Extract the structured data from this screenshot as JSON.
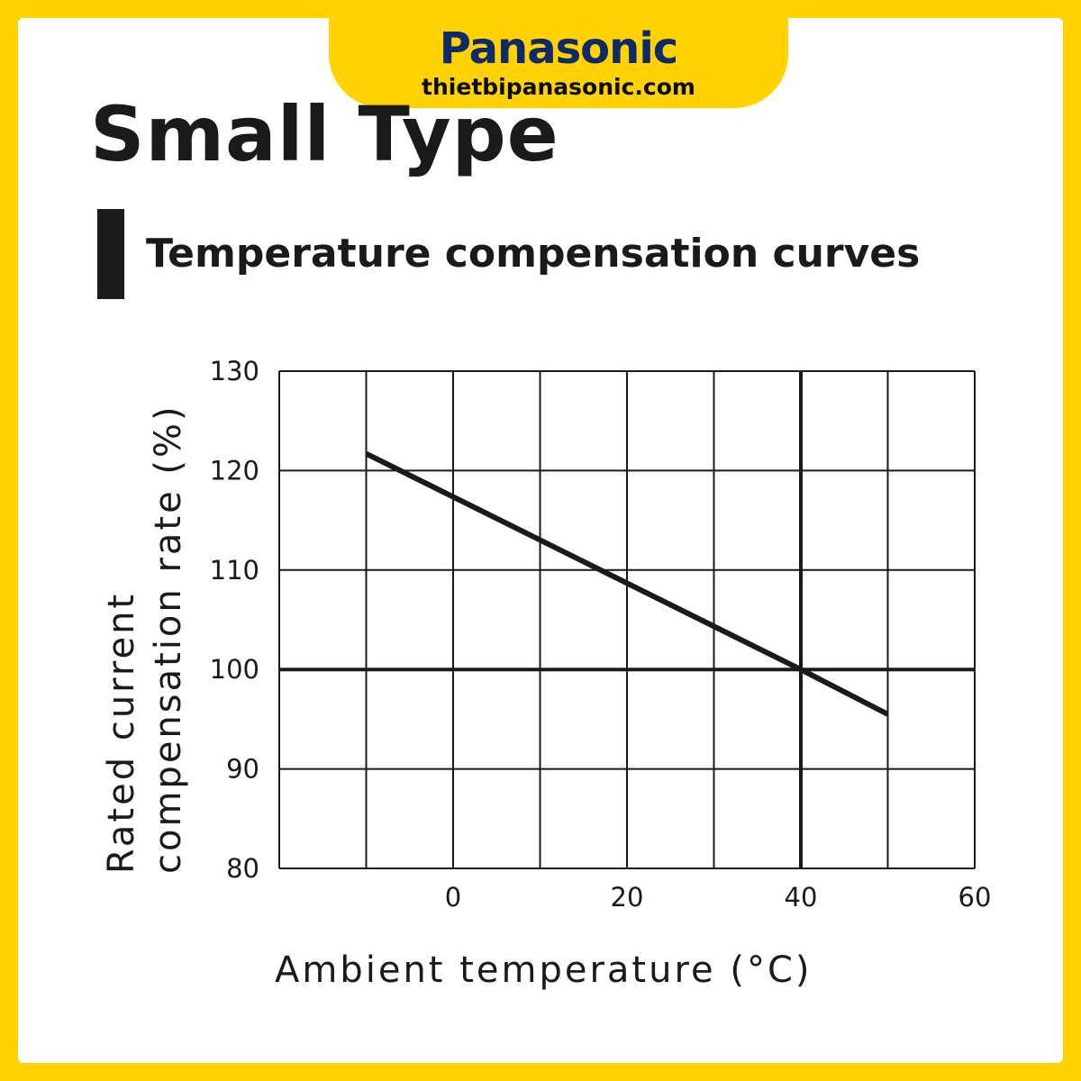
{
  "brand": {
    "name": "Panasonic",
    "website": "thietbipanasonic.com"
  },
  "page": {
    "title": "Small Type",
    "subtitle": "Temperature compensation curves"
  },
  "colors": {
    "accent": "#FFD200",
    "brand_blue": "#0f2a6b",
    "ink": "#1a1a1a"
  },
  "chart_data": {
    "type": "line",
    "title": "",
    "xlabel": "Ambient temperature (°C)",
    "ylabel": "Rated current compensation rate (%)",
    "xlim": [
      -20,
      60
    ],
    "ylim": [
      80,
      130
    ],
    "x_ticks": [
      0,
      20,
      40,
      60
    ],
    "y_ticks": [
      80,
      90,
      100,
      110,
      120,
      130
    ],
    "x_grid_step": 10,
    "y_grid_step": 10,
    "grid": true,
    "reference_lines": {
      "x": 40,
      "y": 100
    },
    "series": [
      {
        "x": [
          -10,
          40,
          50
        ],
        "y": [
          121.7,
          100,
          95.5
        ]
      }
    ]
  }
}
